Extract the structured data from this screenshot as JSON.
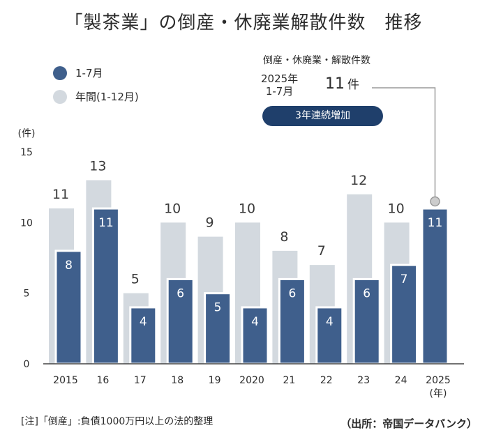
{
  "title": "「製茶業」の倒産・休廃業解散件数　推移",
  "legend": {
    "series_1": "1-7月",
    "series_2": "年間(1-12月)"
  },
  "callout": {
    "heading": "倒産・休廃業・解散件数",
    "year_line1": "2025年",
    "year_line2": "1-7月",
    "value": "11",
    "unit": "件",
    "badge": "3年連続増加"
  },
  "note": "[注]「倒産」:負債1000万円以上の法的整理",
  "source": "（出所：帝国データバンク）",
  "colors": {
    "series_1": "#3f5f8c",
    "series_2": "#d3d9df",
    "badge": "#1f3f6b"
  },
  "chart_data": {
    "type": "bar",
    "categories": [
      "2015",
      "16",
      "17",
      "18",
      "19",
      "2020",
      "21",
      "22",
      "23",
      "24",
      "2025"
    ],
    "series": [
      {
        "name": "年間(1-12月)",
        "values": [
          11,
          13,
          5,
          10,
          9,
          10,
          8,
          7,
          12,
          10,
          null
        ]
      },
      {
        "name": "1-7月",
        "values": [
          8,
          11,
          4,
          6,
          5,
          4,
          6,
          4,
          6,
          7,
          11
        ]
      }
    ],
    "ylabel": "(件)",
    "xlabel_unit": "(年)",
    "ylim": [
      0,
      15
    ],
    "yticks": [
      0,
      5,
      10,
      15
    ],
    "grid": false,
    "legend_position": "top-left"
  }
}
